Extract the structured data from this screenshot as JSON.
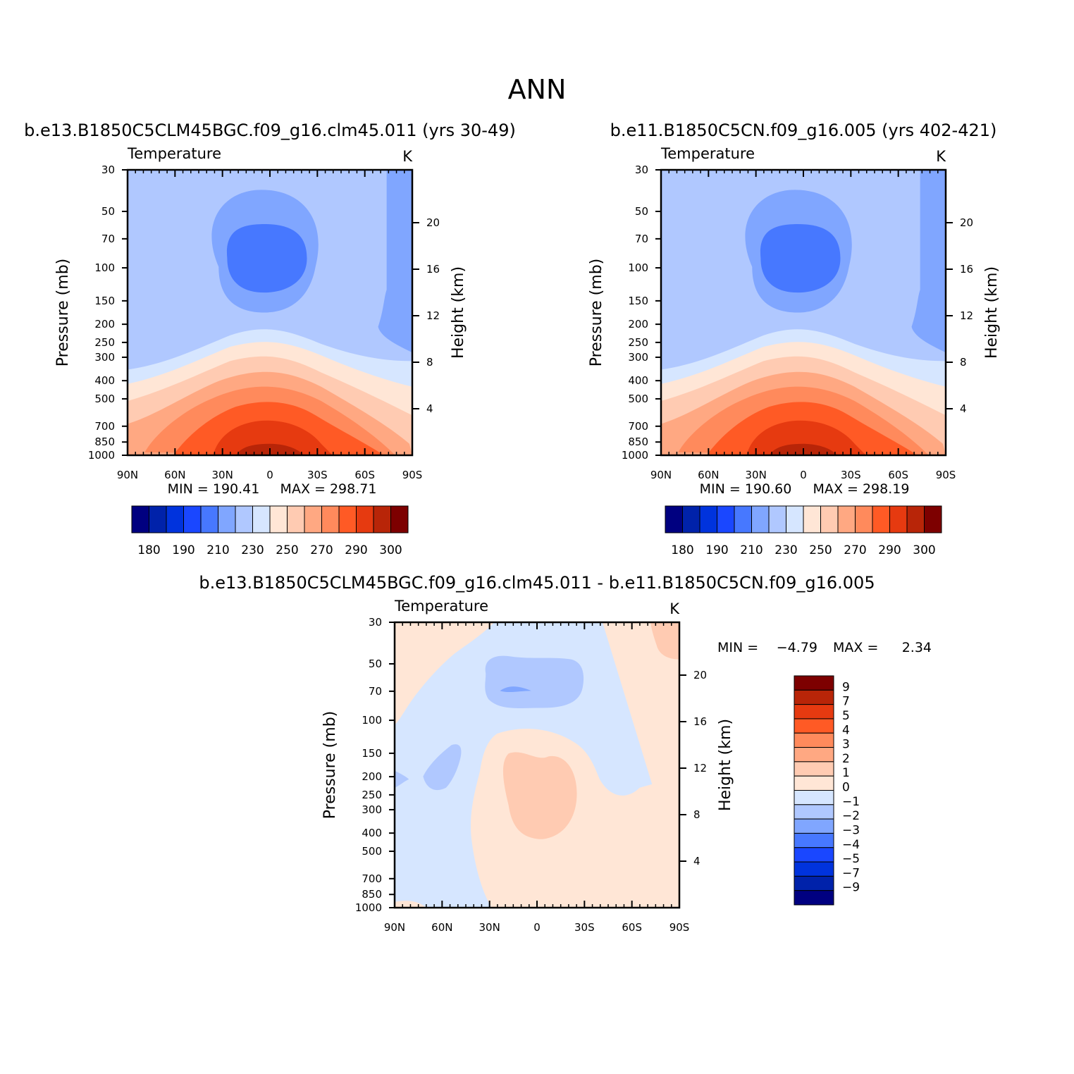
{
  "title": "ANN",
  "colors": {
    "abs_palette": [
      "#000080",
      "#0022aa",
      "#0033dd",
      "#1a47ff",
      "#4778ff",
      "#80a6ff",
      "#b0c8ff",
      "#d6e6ff",
      "#ffe6d6",
      "#ffcbb2",
      "#ffa882",
      "#ff8a5c",
      "#ff5a25",
      "#e63a10",
      "#b82508",
      "#7d0000"
    ],
    "diff_palette": [
      "#000080",
      "#0022aa",
      "#0033dd",
      "#1a47ff",
      "#4778ff",
      "#80a6ff",
      "#b0c8ff",
      "#d6e6ff",
      "#ffe6d6",
      "#ffcbb2",
      "#ffa882",
      "#ff8a5c",
      "#ff5a25",
      "#e63a10",
      "#b82508",
      "#7d0000"
    ]
  },
  "chart_data": [
    {
      "type": "heatmap",
      "id": "p1",
      "title": "b.e13.B1850C5CLM45BGC.f09_g16.clm45.011 (yrs 30-49)",
      "left_label": "Temperature",
      "right_label": "K",
      "xlabel": "",
      "ylabel": "Pressure (mb)",
      "y2label": "Height (km)",
      "x_ticks": [
        "90N",
        "60N",
        "30N",
        "0",
        "30S",
        "60S",
        "90S"
      ],
      "y_ticks": [
        "30",
        "50",
        "70",
        "100",
        "150",
        "200",
        "250",
        "300",
        "400",
        "500",
        "700",
        "850",
        "1000"
      ],
      "y2_ticks": [
        "20",
        "16",
        "12",
        "8",
        "4"
      ],
      "min_label": "MIN =  190.41",
      "max_label": "MAX =  298.71",
      "colorbar_labels": [
        "180",
        "190",
        "210",
        "230",
        "250",
        "270",
        "290",
        "300"
      ],
      "levels": [
        "180",
        "185",
        "190",
        "200",
        "210",
        "220",
        "230",
        "240",
        "250",
        "260",
        "270",
        "280",
        "290",
        "295",
        "300"
      ],
      "regions": [
        {
          "name": "upper-stratosphere",
          "value": 220
        },
        {
          "name": "tropical-cold-outer",
          "value": 210
        },
        {
          "name": "tropical-cold-core",
          "value": 200
        },
        {
          "name": "south-polar-cold",
          "value": 210
        },
        {
          "name": "tropopause-band",
          "value": 230
        },
        {
          "name": "upper-troposphere",
          "value": 240
        },
        {
          "name": "mid-troposphere-1",
          "value": 250
        },
        {
          "name": "mid-troposphere-2",
          "value": 260
        },
        {
          "name": "lower-troposphere-1",
          "value": 270
        },
        {
          "name": "lower-troposphere-2",
          "value": 280
        },
        {
          "name": "surface-warm",
          "value": 290
        },
        {
          "name": "surface-warmest",
          "value": 298.71
        }
      ]
    },
    {
      "type": "heatmap",
      "id": "p2",
      "title": "b.e11.B1850C5CN.f09_g16.005 (yrs 402-421)",
      "left_label": "Temperature",
      "right_label": "K",
      "xlabel": "",
      "ylabel": "Pressure (mb)",
      "y2label": "Height (km)",
      "x_ticks": [
        "90N",
        "60N",
        "30N",
        "0",
        "30S",
        "60S",
        "90S"
      ],
      "y_ticks": [
        "30",
        "50",
        "70",
        "100",
        "150",
        "200",
        "250",
        "300",
        "400",
        "500",
        "700",
        "850",
        "1000"
      ],
      "y2_ticks": [
        "20",
        "16",
        "12",
        "8",
        "4"
      ],
      "min_label": "MIN =  190.60",
      "max_label": "MAX =  298.19",
      "colorbar_labels": [
        "180",
        "190",
        "210",
        "230",
        "250",
        "270",
        "290",
        "300"
      ],
      "levels": [
        "180",
        "185",
        "190",
        "200",
        "210",
        "220",
        "230",
        "240",
        "250",
        "260",
        "270",
        "280",
        "290",
        "295",
        "300"
      ],
      "regions": [
        {
          "name": "upper-stratosphere",
          "value": 220
        },
        {
          "name": "tropical-cold-outer",
          "value": 210
        },
        {
          "name": "tropical-cold-core",
          "value": 200
        },
        {
          "name": "south-polar-cold",
          "value": 210
        },
        {
          "name": "tropopause-band",
          "value": 230
        },
        {
          "name": "upper-troposphere",
          "value": 240
        },
        {
          "name": "mid-troposphere-1",
          "value": 250
        },
        {
          "name": "mid-troposphere-2",
          "value": 260
        },
        {
          "name": "lower-troposphere-1",
          "value": 270
        },
        {
          "name": "lower-troposphere-2",
          "value": 280
        },
        {
          "name": "surface-warm",
          "value": 290
        },
        {
          "name": "surface-warmest",
          "value": 298.19
        }
      ]
    },
    {
      "type": "heatmap",
      "id": "p3",
      "title": "b.e13.B1850C5CLM45BGC.f09_g16.clm45.011 - b.e11.B1850C5CN.f09_g16.005",
      "left_label": "Temperature",
      "right_label": "K",
      "xlabel": "",
      "ylabel": "Pressure (mb)",
      "y2label": "Height (km)",
      "x_ticks": [
        "90N",
        "60N",
        "30N",
        "0",
        "30S",
        "60S",
        "90S"
      ],
      "y_ticks": [
        "30",
        "50",
        "70",
        "100",
        "150",
        "200",
        "250",
        "300",
        "400",
        "500",
        "700",
        "850",
        "1000"
      ],
      "y2_ticks": [
        "20",
        "16",
        "12",
        "8",
        "4"
      ],
      "min_text": "MIN =",
      "min_value": "-4.79",
      "max_text": "MAX =",
      "max_value": "2.34",
      "colorbar_labels": [
        "9",
        "7",
        "5",
        "4",
        "3",
        "2",
        "1",
        "0",
        "-1",
        "-2",
        "-3",
        "-4",
        "-5",
        "-7",
        "-9"
      ],
      "regions": [
        {
          "name": "background-negative",
          "value": -0.5
        },
        {
          "name": "tropical-upper-negative",
          "value": -1.5
        },
        {
          "name": "tropical-upper-core",
          "value": -2.5
        },
        {
          "name": "nh-midlat-negative",
          "value": -1.5
        },
        {
          "name": "tropical-positive",
          "value": 0.5
        },
        {
          "name": "tropical-positive-core",
          "value": 1.5
        },
        {
          "name": "sh-polar-positive",
          "value": 0.5
        },
        {
          "name": "sh-polar-upper-core",
          "value": 1.5
        },
        {
          "name": "nh-polar-upper-positive",
          "value": 0.5
        }
      ]
    }
  ]
}
